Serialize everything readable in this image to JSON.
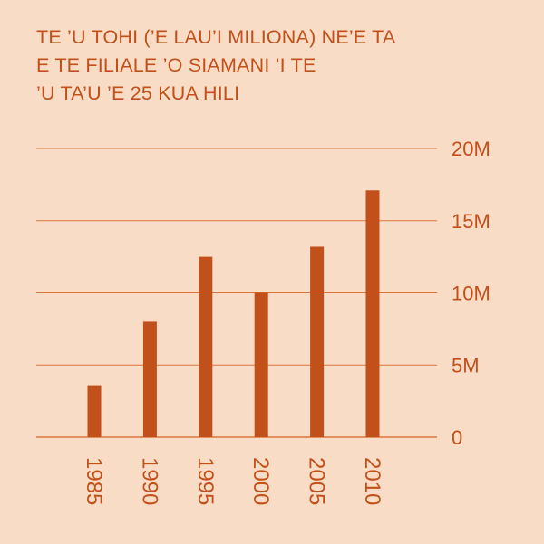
{
  "colors": {
    "background": "#f9dcc5",
    "accent": "#c1501b",
    "grid": "#d9763e"
  },
  "title_lines": [
    "TE ’U TOHI (’E LAU’I MILIONA) NE’E TA",
    "E TE FILIALE ’O SIAMANI ’I TE",
    "’U TA’U ’E 25 KUA HILI"
  ],
  "chart_data": {
    "type": "bar",
    "title": "TE ’U TOHI (’E LAU’I MILIONA) NE’E TA E TE FILIALE ’O SIAMANI ’I TE ’U TA’U ’E 25 KUA HILI",
    "categories": [
      "1985",
      "1990",
      "1995",
      "2000",
      "2005",
      "2010"
    ],
    "values": [
      3.6,
      8.0,
      12.5,
      10.0,
      13.2,
      17.1
    ],
    "ylim": [
      0,
      20
    ],
    "yticks": [
      0,
      5,
      10,
      15,
      20
    ],
    "ytick_labels": [
      "0",
      "5M",
      "10M",
      "15M",
      "20M"
    ],
    "xlabel": "",
    "ylabel": "",
    "grid": true,
    "xtick_rotation": "vertical"
  }
}
